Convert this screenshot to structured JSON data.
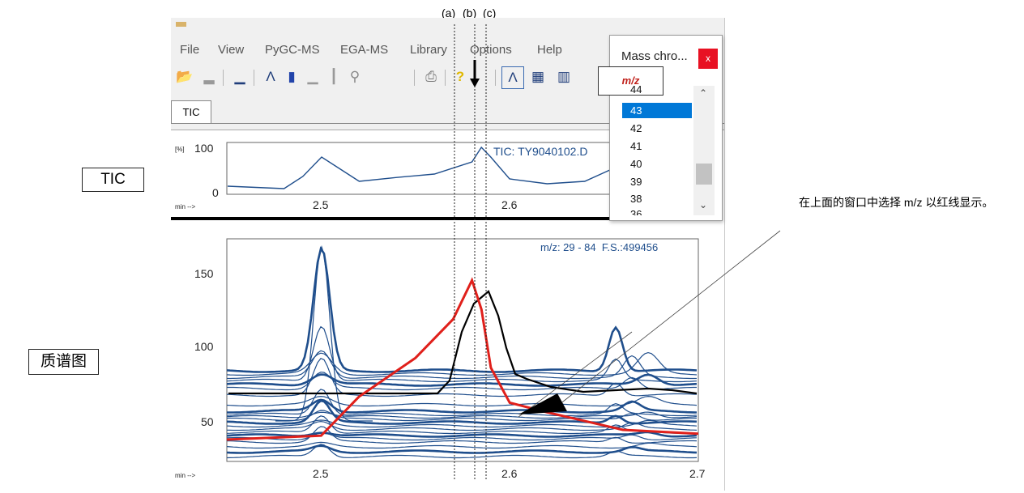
{
  "window": {
    "menu": [
      "File",
      "View",
      "PyGC-MS",
      "EGA-MS",
      "Library",
      "Options",
      "Help"
    ],
    "toolbar_icons": [
      "open-folder-icon",
      "spectrum-icon",
      "bar-spectrum-icon",
      "peak-icon",
      "columns-icon",
      "bars-icon",
      "stick-spectrum-icon",
      "search-icon",
      "print-icon",
      "help-icon",
      "chromatogram-view-icon",
      "color-chromatogram-icon",
      "baseline-view-icon"
    ],
    "active_tab": "TIC"
  },
  "tic_panel": {
    "y_unit": "[%]",
    "y_ticks": [
      "100",
      "0"
    ],
    "x_unit": "min -->",
    "x_ticks": [
      "2.5",
      "2.6"
    ],
    "file_label": "TIC: TY9040102.D"
  },
  "mass_panel": {
    "header": "m/z: 29 - 84  F.S.:499456",
    "y_ticks": [
      "150",
      "100",
      "50"
    ],
    "x_unit": "min -->",
    "x_ticks": [
      "2.5",
      "2.6",
      "2.7"
    ]
  },
  "popup": {
    "title": "Mass chro...",
    "close": "x",
    "mz_label": "m/z",
    "items": [
      "44",
      "43",
      "42",
      "41",
      "40",
      "39",
      "38",
      "36"
    ],
    "selected": "43"
  },
  "markers": [
    "(a)",
    "(b)",
    "(c)"
  ],
  "side_labels": {
    "tic": "TIC",
    "mass": "质谱图"
  },
  "annotation": "在上面的窗口中选择 m/z 以红线显示。",
  "colors": {
    "trace": "#1f4e8c",
    "highlight": "#e0201b",
    "overlay": "#000000",
    "selection": "#0078d7"
  },
  "chart_data": [
    {
      "type": "line",
      "title": "TIC: TY9040102.D",
      "ylabel": "[%]",
      "xlabel": "min -->",
      "ylim": [
        0,
        100
      ],
      "series": [
        {
          "x": [
            2.45,
            2.48,
            2.49,
            2.5,
            2.51,
            2.52,
            2.54,
            2.56,
            2.58,
            2.585,
            2.59,
            2.6,
            2.62,
            2.64,
            2.66
          ],
          "values": [
            10,
            5,
            30,
            70,
            45,
            20,
            28,
            35,
            60,
            90,
            70,
            25,
            15,
            20,
            55
          ]
        }
      ]
    },
    {
      "type": "line",
      "title": "m/z: 29 - 84  F.S.:499456",
      "xlabel": "min -->",
      "xlim": [
        2.45,
        2.7
      ],
      "series": [
        {
          "name": "43",
          "x": [
            2.45,
            2.5,
            2.52,
            2.55,
            2.57,
            2.58,
            2.585,
            2.59,
            2.6,
            2.62,
            2.66,
            2.7
          ],
          "values": [
            43,
            45,
            65,
            85,
            105,
            125,
            110,
            80,
            62,
            57,
            48,
            46
          ]
        }
      ]
    }
  ]
}
